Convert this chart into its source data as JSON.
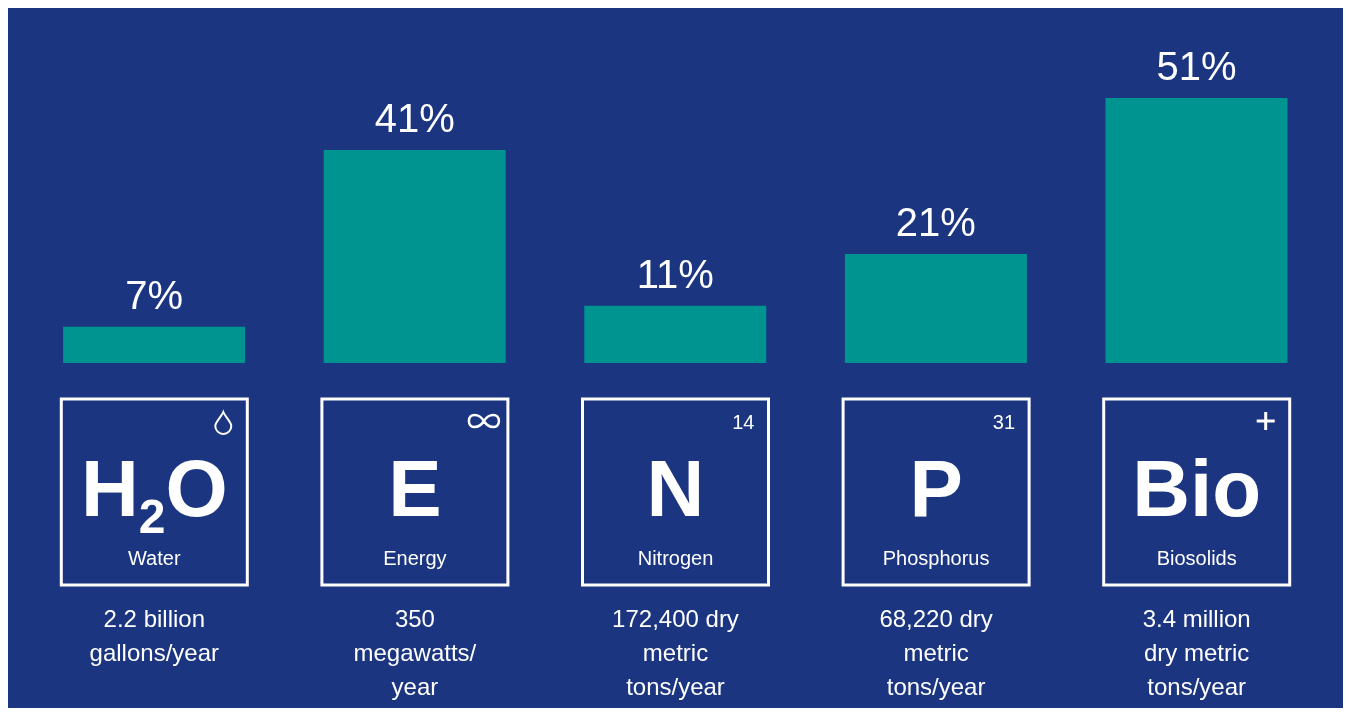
{
  "chart_data": {
    "type": "bar",
    "categories": [
      "Water",
      "Energy",
      "Nitrogen",
      "Phosphorus",
      "Biosolids"
    ],
    "values": [
      7,
      41,
      11,
      21,
      51
    ],
    "color": "#009490",
    "value_labels": [
      "7%",
      "41%",
      "11%",
      "21%",
      "51%"
    ],
    "annotations": [
      "H$_{2}$O",
      "E",
      "N",
      "P",
      "Bio",
      "2.2 billion gallons/year",
      "350 megawatts/year",
      "172,400 dry metric tons/year",
      "68,220 dry metric tons/year",
      "3.4 million dry metric tons/year",
      "14",
      "31"
    ]
  }
}
